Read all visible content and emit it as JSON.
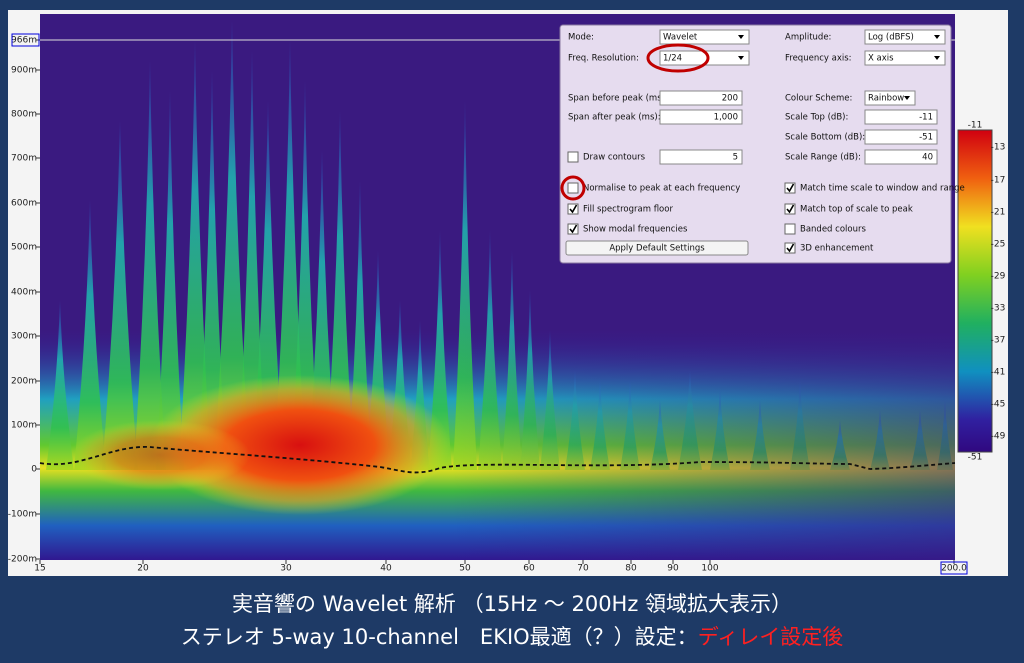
{
  "plot": {
    "y_labels": [
      "966m",
      "900m",
      "800m",
      "700m",
      "600m",
      "500m",
      "400m",
      "300m",
      "200m",
      "100m",
      "0",
      "-100m",
      "-200m"
    ],
    "x_labels": [
      "15",
      "20",
      "30",
      "40",
      "50",
      "60",
      "70",
      "80",
      "90",
      "100",
      "200.0"
    ],
    "colorbar_labels": [
      "-11",
      "-13",
      "-17",
      "-21",
      "-25",
      "-29",
      "-33",
      "-37",
      "-41",
      "-45",
      "-49",
      "-51"
    ]
  },
  "panel": {
    "mode_label": "Mode:",
    "mode": "Wavelet",
    "amplitude_label": "Amplitude:",
    "amplitude": "Log (dBFS)",
    "freq_res_label": "Freq. Resolution:",
    "freq_res": "1/24",
    "freq_axis_label": "Frequency axis:",
    "freq_axis": "X axis",
    "span_before_label": "Span before peak (ms):",
    "span_before": "200",
    "colour_scheme_label": "Colour Scheme:",
    "colour_scheme": "Rainbow",
    "span_after_label": "Span after peak (ms):",
    "span_after": "1,000",
    "scale_top_label": "Scale Top (dB):",
    "scale_top": "-11",
    "scale_bottom_label": "Scale Bottom (dB):",
    "scale_bottom": "-51",
    "draw_contours_label": "Draw contours",
    "draw_contours": "5",
    "scale_range_label": "Scale Range (dB):",
    "scale_range": "40",
    "normalise_label": "Normalise to peak at each frequency",
    "match_time_label": "Match time scale to window and range",
    "fill_floor_label": "Fill spectrogram floor",
    "match_top_label": "Match top of scale to peak",
    "show_modal_label": "Show modal frequencies",
    "banded_label": "Banded colours",
    "apply_button": "Apply Default Settings",
    "enhancement_label": "3D enhancement"
  },
  "caption": {
    "line1": "実音響の Wavelet 解析 （15Hz ～ 200Hz 領域拡大表示）",
    "line2_main": "ステレオ 5-way 10-channel　EKIO最適（？）設定：",
    "line2_highlight": "ディレイ設定後"
  }
}
